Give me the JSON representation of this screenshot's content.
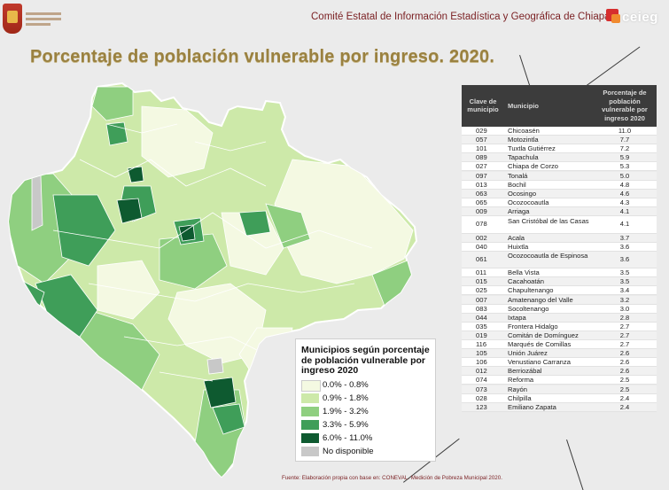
{
  "header": {
    "state_logo_icon": "chiapas-government-shield-logo",
    "org_title": "Comité Estatal de Información Estadística y Geográfica de Chiapas",
    "org_logo_icon": "ceieg-logo",
    "org_logo_text": "ceieg"
  },
  "title": "Porcentaje de población vulnerable por ingreso. 2020.",
  "legend": {
    "title": "Municipios según porcentaje de población vulnerable por ingreso 2020",
    "items": [
      {
        "label": "0.0% - 0.8%",
        "color": "#f4f9e2"
      },
      {
        "label": "0.9% - 1.8%",
        "color": "#cde9a9"
      },
      {
        "label": "1.9% - 3.2%",
        "color": "#8fcf80"
      },
      {
        "label": "3.3% - 5.9%",
        "color": "#3f9e59"
      },
      {
        "label": "6.0% - 11.0%",
        "color": "#0e5a30"
      },
      {
        "label": "No disponible",
        "color": "#c8c8c8"
      }
    ]
  },
  "table": {
    "headers": {
      "key": "Clave de municipio",
      "municipality": "Municipio",
      "percent": "Porcentaje de población vulnerable por ingreso 2020"
    },
    "rows": [
      {
        "key": "029",
        "name": "Chicoasén",
        "value": "11.0"
      },
      {
        "key": "057",
        "name": "Motozintla",
        "value": "7.7"
      },
      {
        "key": "101",
        "name": "Tuxtla Gutiérrez",
        "value": "7.2"
      },
      {
        "key": "089",
        "name": "Tapachula",
        "value": "5.9"
      },
      {
        "key": "027",
        "name": "Chiapa de Corzo",
        "value": "5.3"
      },
      {
        "key": "097",
        "name": "Tonalá",
        "value": "5.0"
      },
      {
        "key": "013",
        "name": "Bochil",
        "value": "4.8"
      },
      {
        "key": "063",
        "name": "Ocosingo",
        "value": "4.6"
      },
      {
        "key": "065",
        "name": "Ocozocoautla",
        "value": "4.3"
      },
      {
        "key": "009",
        "name": "Arriaga",
        "value": "4.1"
      },
      {
        "key": "078",
        "name": "San Cristóbal de las Casas",
        "value": "4.1"
      },
      {
        "key": "002",
        "name": "Acala",
        "value": "3.7"
      },
      {
        "key": "040",
        "name": "Huixtla",
        "value": "3.6"
      },
      {
        "key": "061",
        "name": "Ocozocoautla de Espinosa",
        "value": "3.6"
      },
      {
        "key": "011",
        "name": "Bella Vista",
        "value": "3.5"
      },
      {
        "key": "015",
        "name": "Cacahoatán",
        "value": "3.5"
      },
      {
        "key": "025",
        "name": "Chapultenango",
        "value": "3.4"
      },
      {
        "key": "007",
        "name": "Amatenango del Valle",
        "value": "3.2"
      },
      {
        "key": "083",
        "name": "Socoltenango",
        "value": "3.0"
      },
      {
        "key": "044",
        "name": "Ixtapa",
        "value": "2.8"
      },
      {
        "key": "035",
        "name": "Frontera Hidalgo",
        "value": "2.7"
      },
      {
        "key": "019",
        "name": "Comitán de Domínguez",
        "value": "2.7"
      },
      {
        "key": "116",
        "name": "Marqués de Comillas",
        "value": "2.7"
      },
      {
        "key": "105",
        "name": "Unión Juárez",
        "value": "2.6"
      },
      {
        "key": "106",
        "name": "Venustiano Carranza",
        "value": "2.6"
      },
      {
        "key": "012",
        "name": "Berriozábal",
        "value": "2.6"
      },
      {
        "key": "074",
        "name": "Reforma",
        "value": "2.5"
      },
      {
        "key": "073",
        "name": "Rayón",
        "value": "2.5"
      },
      {
        "key": "028",
        "name": "Chilpilla",
        "value": "2.4"
      },
      {
        "key": "123",
        "name": "Emiliano Zapata",
        "value": "2.4"
      }
    ]
  },
  "source": "Fuente: Elaboración propia con base en: CONEVAL. Medición de Pobreza Municipal 2020."
}
